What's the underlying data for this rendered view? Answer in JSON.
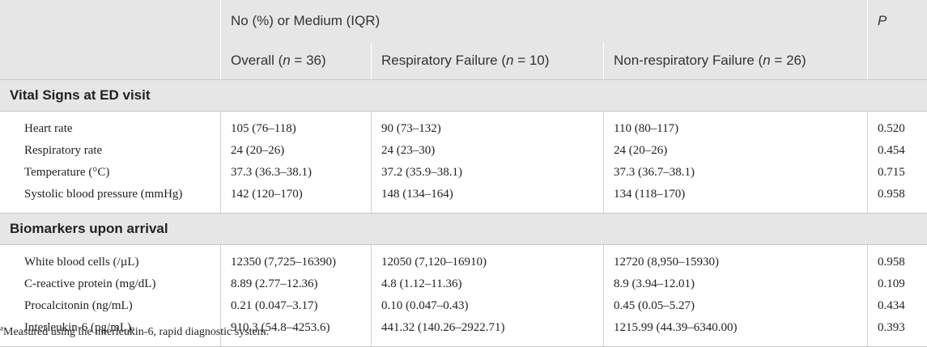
{
  "header": {
    "group_label": "No (%) or Medium (IQR)",
    "p_label": "P",
    "columns": [
      {
        "prefix": "Overall (",
        "n": "n",
        "suffix": " = 36)"
      },
      {
        "prefix": "Respiratory Failure (",
        "n": "n",
        "suffix": " = 10)"
      },
      {
        "prefix": "Non-respiratory Failure (",
        "n": "n",
        "suffix": " = 26)"
      }
    ]
  },
  "sections": [
    {
      "title": "Vital Signs at ED visit",
      "rows": [
        {
          "label": "Heart rate",
          "overall": "105 (76–118)",
          "resp": "90 (73–132)",
          "nonresp": "110 (80–117)",
          "p": "0.520"
        },
        {
          "label": "Respiratory rate",
          "overall": "24 (20–26)",
          "resp": "24 (23–30)",
          "nonresp": "24 (20–26)",
          "p": "0.454"
        },
        {
          "label": "Temperature (°C)",
          "overall": "37.3 (36.3–38.1)",
          "resp": "37.2 (35.9–38.1)",
          "nonresp": "37.3 (36.7–38.1)",
          "p": "0.715"
        },
        {
          "label": "Systolic blood pressure (mmHg)",
          "overall": "142 (120–170)",
          "resp": "148 (134–164)",
          "nonresp": "134 (118–170)",
          "p": "0.958"
        }
      ]
    },
    {
      "title": "Biomarkers upon arrival",
      "rows": [
        {
          "label": "White blood cells (/µL)",
          "overall": "12350 (7,725–16390)",
          "resp": "12050 (7,120–16910)",
          "nonresp": "12720 (8,950–15930)",
          "p": "0.958"
        },
        {
          "label": "C-reactive protein (mg/dL)",
          "overall": "8.89 (2.77–12.36)",
          "resp": "4.8 (1.12–11.36)",
          "nonresp": "8.9 (3.94–12.01)",
          "p": "0.109"
        },
        {
          "label": "Procalcitonin (ng/mL)",
          "overall": "0.21 (0.047–3.17)",
          "resp": "0.10 (0.047–0.43)",
          "nonresp": "0.45 (0.05–5.27)",
          "p": "0.434"
        },
        {
          "label": "Interleukin-6 (pg/mL)",
          "label_sup": "a",
          "overall": "910.3 (54.8–4253.6)",
          "resp": "441.32 (140.26–2922.71)",
          "nonresp": "1215.99 (44.39–6340.00)",
          "p": "0.393"
        }
      ]
    }
  ],
  "footnote": {
    "marker": "a",
    "text": "Measured using the interleukin-6, rapid diagnostic system."
  }
}
